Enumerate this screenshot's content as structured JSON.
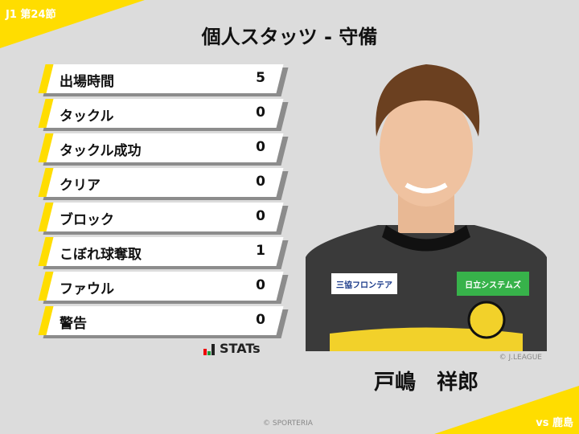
{
  "round": "J1 第24節",
  "title": "個人スタッツ - 守備",
  "stats": [
    {
      "label": "出場時間",
      "value": "5"
    },
    {
      "label": "タックル",
      "value": "0"
    },
    {
      "label": "タックル成功",
      "value": "0"
    },
    {
      "label": "クリア",
      "value": "0"
    },
    {
      "label": "ブロック",
      "value": "0"
    },
    {
      "label": "こぼれ球奪取",
      "value": "1"
    },
    {
      "label": "ファウル",
      "value": "0"
    },
    {
      "label": "警告",
      "value": "0"
    }
  ],
  "stats_logo": "STATs",
  "photo_credit": "© J.LEAGUE",
  "player_name": "戸嶋　祥郎",
  "opponent": "vs 鹿島",
  "copyright": "© SPORTERIA",
  "colors": {
    "accent": "#ffdd00",
    "background": "#dcdcdc"
  },
  "jersey": {
    "sponsor_chest": "三協フロンテア",
    "sponsor_right": "日立システムズ"
  }
}
